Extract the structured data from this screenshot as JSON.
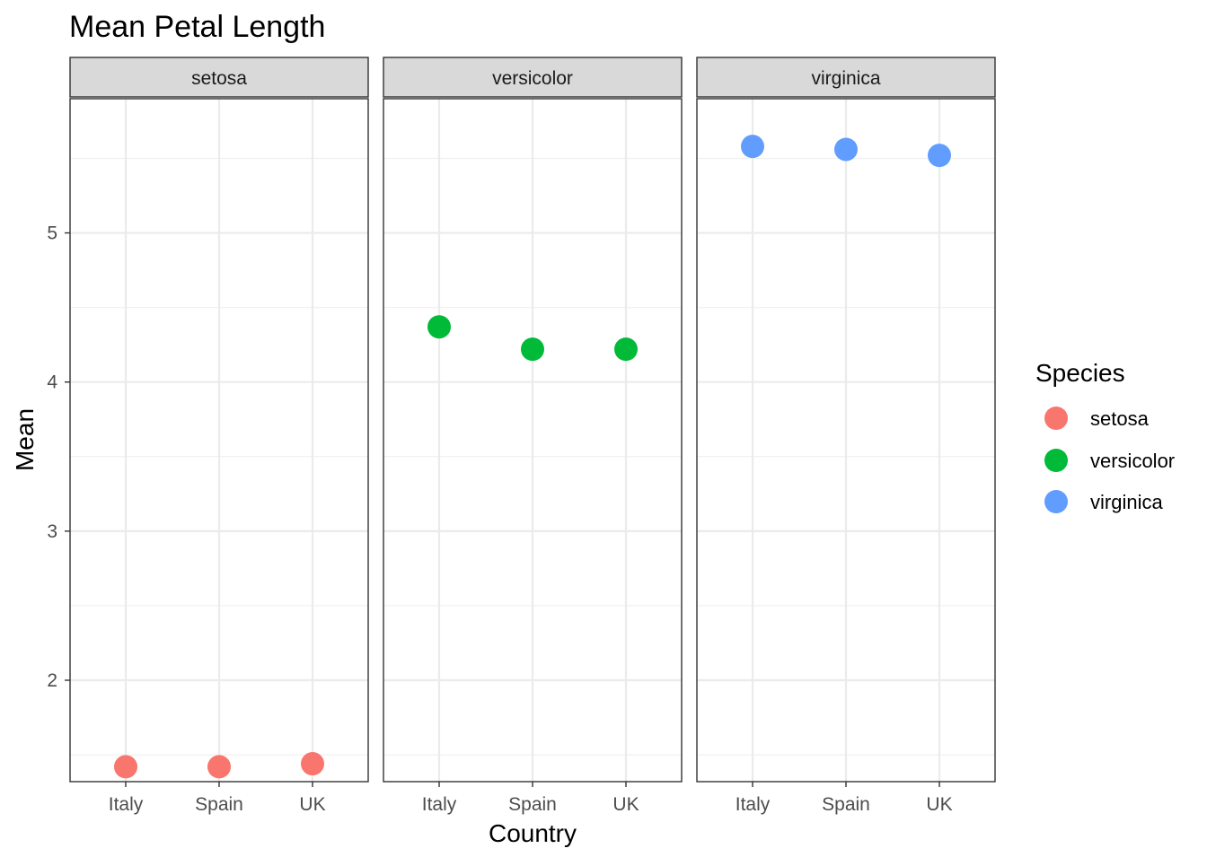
{
  "chart_data": {
    "type": "scatter",
    "title": "Mean Petal Length",
    "xlabel": "Country",
    "ylabel": "Mean",
    "categories": [
      "Italy",
      "Spain",
      "UK"
    ],
    "facets": [
      "setosa",
      "versicolor",
      "virginica"
    ],
    "ylim": [
      1.32,
      5.9
    ],
    "y_ticks": [
      2,
      3,
      4,
      5
    ],
    "y_tick_labels": [
      "2",
      "3",
      "4",
      "5"
    ],
    "grid": true,
    "legend": {
      "title": "Species",
      "position": "right",
      "items": [
        "setosa",
        "versicolor",
        "virginica"
      ]
    },
    "series": [
      {
        "name": "setosa",
        "facet": "setosa",
        "color": "#F8766D",
        "values": [
          1.42,
          1.42,
          1.44
        ]
      },
      {
        "name": "versicolor",
        "facet": "versicolor",
        "color": "#00BA38",
        "values": [
          4.37,
          4.22,
          4.22
        ]
      },
      {
        "name": "virginica",
        "facet": "virginica",
        "color": "#619CFF",
        "values": [
          5.58,
          5.56,
          5.52
        ]
      }
    ]
  }
}
